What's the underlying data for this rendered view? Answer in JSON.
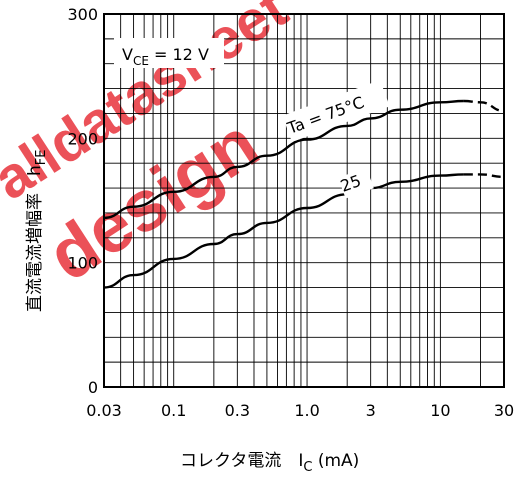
{
  "chart_data": {
    "type": "line",
    "xscale": "log",
    "xlim": [
      0.03,
      30
    ],
    "ylim": [
      0,
      300
    ],
    "xticks": [
      "0.03",
      "0.1",
      "0.3",
      "1.0",
      "3",
      "10",
      "30"
    ],
    "xtick_values": [
      0.03,
      0.1,
      0.3,
      1.0,
      3,
      10,
      30
    ],
    "yticks": [
      "0",
      "100",
      "200",
      "300"
    ],
    "ytick_values": [
      0,
      100,
      200,
      300
    ],
    "grid": true,
    "xlabel": "コレクタ電流　I",
    "xlabel_sub": "C",
    "xlabel_unit": " (mA)",
    "ylabel": "直流電流増幅率　h",
    "ylabel_sub": "FE",
    "condition": {
      "main": "V",
      "sub": "CE",
      "rest": " = 12 V"
    },
    "series": [
      {
        "name": "Ta = 75°C",
        "x": [
          0.03,
          0.05,
          0.1,
          0.2,
          0.3,
          0.5,
          1.0,
          2.0,
          3.0,
          5.0,
          10,
          15,
          20,
          30
        ],
        "y": [
          136,
          145,
          157,
          169,
          177,
          186,
          199,
          210,
          216,
          223,
          229,
          230,
          229,
          222
        ],
        "dashed_from_x": 15
      },
      {
        "name": "25",
        "x": [
          0.03,
          0.05,
          0.1,
          0.2,
          0.3,
          0.5,
          1.0,
          2.0,
          3.0,
          5.0,
          10,
          15,
          20,
          30
        ],
        "y": [
          80,
          90,
          103,
          115,
          123,
          132,
          144,
          155,
          160,
          165,
          170,
          171,
          171,
          169
        ],
        "dashed_from_x": 15
      }
    ]
  },
  "watermark": {
    "lines": [
      "alldatasheet",
      "design"
    ],
    "color": "#e8333b"
  }
}
